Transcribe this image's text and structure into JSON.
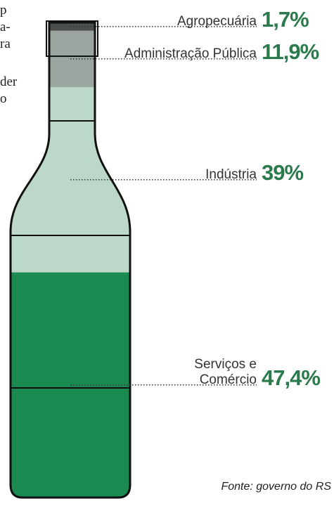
{
  "background_text": [
    "p",
    "a-",
    "ra",
    "der",
    "o"
  ],
  "chart_data": {
    "type": "pictogram",
    "categories": [
      "Agropecuária",
      "Administração Pública",
      "Indústria",
      "Serviços e Comércio"
    ],
    "values": [
      1.7,
      11.9,
      39,
      47.4
    ],
    "value_labels": [
      "1,7%",
      "11,9%",
      "39%",
      "47,4%"
    ],
    "colors": [
      "#4a4f4c",
      "#9aa59f",
      "#bcd8c8",
      "#1b8a50"
    ],
    "source": "Fonte: governo do RS"
  }
}
